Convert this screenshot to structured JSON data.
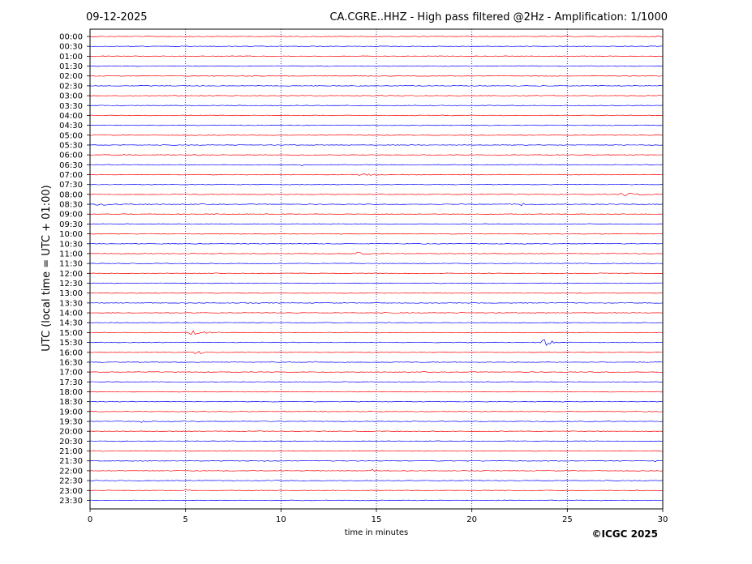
{
  "header": {
    "date": "09-12-2025",
    "title": "CA.CGRE..HHZ - High pass filtered @2Hz - Amplification: 1/1000"
  },
  "footer": {
    "copyright": "©ICGC 2025"
  },
  "colors": {
    "even_trace": "#ff0000",
    "odd_trace": "#0000ff",
    "vertical_grid": "#000080"
  },
  "chart_data": {
    "type": "line",
    "xlabel": "time in minutes",
    "ylabel": "UTC (local time = UTC + 01:00)",
    "xlim": [
      0,
      30
    ],
    "x_ticks": [
      "0",
      "5",
      "10",
      "15",
      "20",
      "25",
      "30"
    ],
    "vertical_gridlines": [
      5,
      10,
      15,
      20,
      25
    ],
    "rows": [
      "00:00",
      "00:30",
      "01:00",
      "01:30",
      "02:00",
      "02:30",
      "03:00",
      "03:30",
      "04:00",
      "04:30",
      "05:00",
      "05:30",
      "06:00",
      "06:30",
      "07:00",
      "07:30",
      "08:00",
      "08:30",
      "09:00",
      "09:30",
      "10:00",
      "10:30",
      "11:00",
      "11:30",
      "12:00",
      "12:30",
      "13:00",
      "13:30",
      "14:00",
      "14:30",
      "15:00",
      "15:30",
      "16:00",
      "16:30",
      "17:00",
      "17:30",
      "18:00",
      "18:30",
      "19:00",
      "19:30",
      "20:00",
      "20:30",
      "21:00",
      "21:30",
      "22:00",
      "22:30",
      "23:00",
      "23:30"
    ],
    "events": [
      {
        "row": "02:00",
        "minute": 8.5,
        "amplitude": 0.6,
        "duration": 0.2
      },
      {
        "row": "03:00",
        "minute": 8.8,
        "amplitude": 1.0,
        "duration": 0.3
      },
      {
        "row": "03:30",
        "minute": 10.3,
        "amplitude": 1.0,
        "duration": 0.2
      },
      {
        "row": "03:30",
        "minute": 22.6,
        "amplitude": 0.8,
        "duration": 0.2
      },
      {
        "row": "03:30",
        "minute": 23.6,
        "amplitude": 0.6,
        "duration": 0.2
      },
      {
        "row": "06:00",
        "minute": 1.8,
        "amplitude": 0.8,
        "duration": 1.6
      },
      {
        "row": "06:00",
        "minute": 5.7,
        "amplitude": 1.5,
        "duration": 0.3
      },
      {
        "row": "06:30",
        "minute": 11.1,
        "amplitude": 1.4,
        "duration": 0.2
      },
      {
        "row": "07:00",
        "minute": 13.8,
        "amplitude": 3.0,
        "duration": 1.6
      },
      {
        "row": "07:30",
        "minute": 7.9,
        "amplitude": 1.0,
        "duration": 0.3
      },
      {
        "row": "08:00",
        "minute": 27.7,
        "amplitude": 2.4,
        "duration": 2.2
      },
      {
        "row": "08:30",
        "minute": 0.2,
        "amplitude": 1.5,
        "duration": 5.0
      },
      {
        "row": "08:30",
        "minute": 22.6,
        "amplitude": 2.6,
        "duration": 0.6
      },
      {
        "row": "09:00",
        "minute": 16.0,
        "amplitude": 1.6,
        "duration": 0.4
      },
      {
        "row": "11:00",
        "minute": 14.0,
        "amplitude": 2.4,
        "duration": 0.7
      },
      {
        "row": "12:00",
        "minute": 26.7,
        "amplitude": 0.8,
        "duration": 0.6
      },
      {
        "row": "15:00",
        "minute": 5.2,
        "amplitude": 3.0,
        "duration": 1.6
      },
      {
        "row": "15:30",
        "minute": 23.6,
        "amplitude": 13.0,
        "duration": 0.5
      },
      {
        "row": "15:30",
        "minute": 24.4,
        "amplitude": 1.0,
        "duration": 0.3
      },
      {
        "row": "16:00",
        "minute": 5.5,
        "amplitude": 6.0,
        "duration": 0.5
      },
      {
        "row": "16:30",
        "minute": 11.8,
        "amplitude": 1.4,
        "duration": 0.2
      },
      {
        "row": "17:00",
        "minute": 6.0,
        "amplitude": 0.8,
        "duration": 1.8
      },
      {
        "row": "17:30",
        "minute": 16.3,
        "amplitude": 0.9,
        "duration": 0.2
      },
      {
        "row": "19:30",
        "minute": 2.7,
        "amplitude": 2.2,
        "duration": 0.3
      },
      {
        "row": "21:00",
        "minute": 7.3,
        "amplitude": 1.0,
        "duration": 0.6
      },
      {
        "row": "21:30",
        "minute": 29.4,
        "amplitude": 2.2,
        "duration": 0.5
      },
      {
        "row": "22:00",
        "minute": 14.8,
        "amplitude": 2.4,
        "duration": 0.4
      },
      {
        "row": "23:00",
        "minute": 5.0,
        "amplitude": 1.8,
        "duration": 0.4
      }
    ]
  }
}
